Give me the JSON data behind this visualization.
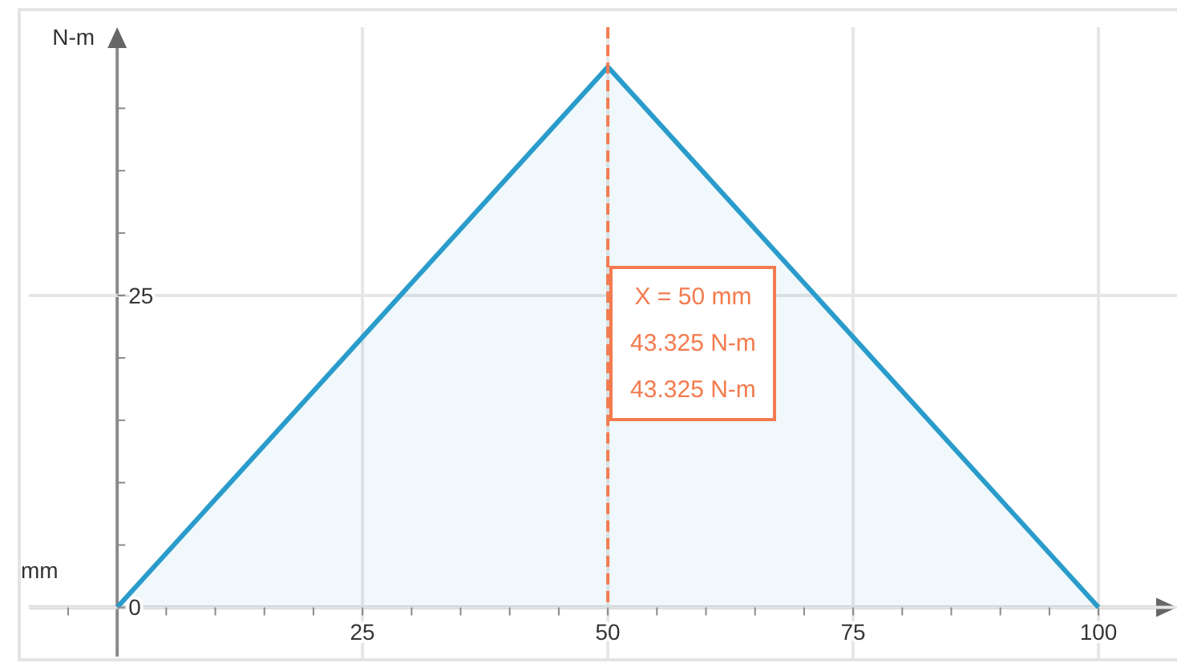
{
  "chart_data": {
    "type": "area",
    "xlabel": "mm",
    "ylabel": "N-m",
    "x": [
      0,
      50,
      100
    ],
    "series": [
      {
        "color": "#2a9ccb",
        "values": [
          0,
          43.325,
          0
        ]
      }
    ],
    "xlim": [
      -9,
      108
    ],
    "xticks": [
      {
        "value": -5,
        "label": null
      },
      {
        "value": 5,
        "label": null
      },
      {
        "value": 10,
        "label": null
      },
      {
        "value": 15,
        "label": null
      },
      {
        "value": 20,
        "label": null
      },
      25,
      {
        "value": 30,
        "label": null
      },
      {
        "value": 35,
        "label": null
      },
      {
        "value": 40,
        "label": null
      },
      {
        "value": 45,
        "label": null
      },
      50,
      {
        "value": 55,
        "label": null
      },
      {
        "value": 60,
        "label": null
      },
      {
        "value": 65,
        "label": null
      },
      {
        "value": 70,
        "label": null
      },
      75,
      {
        "value": 80,
        "label": null
      },
      {
        "value": 85,
        "label": null
      },
      {
        "value": 90,
        "label": null
      },
      {
        "value": 95,
        "label": null
      },
      100
    ],
    "ylim": [
      -4.2,
      46.5
    ],
    "yticks": [
      0,
      {
        "value": 5,
        "label": null
      },
      {
        "value": 10,
        "label": null
      },
      {
        "value": 15,
        "label": null
      },
      {
        "value": 20,
        "label": null
      },
      25,
      {
        "value": 30,
        "label": null
      },
      {
        "value": 35,
        "label": null
      },
      {
        "value": 40,
        "label": null
      }
    ],
    "grid": true,
    "ref_lines": [
      {
        "axis": "x",
        "value": 50,
        "color": "#f47b4f",
        "line_style": "dashed"
      }
    ],
    "annotations": [
      "X = 50 mm",
      "43.325 N-m",
      "43.325 N-m"
    ]
  }
}
